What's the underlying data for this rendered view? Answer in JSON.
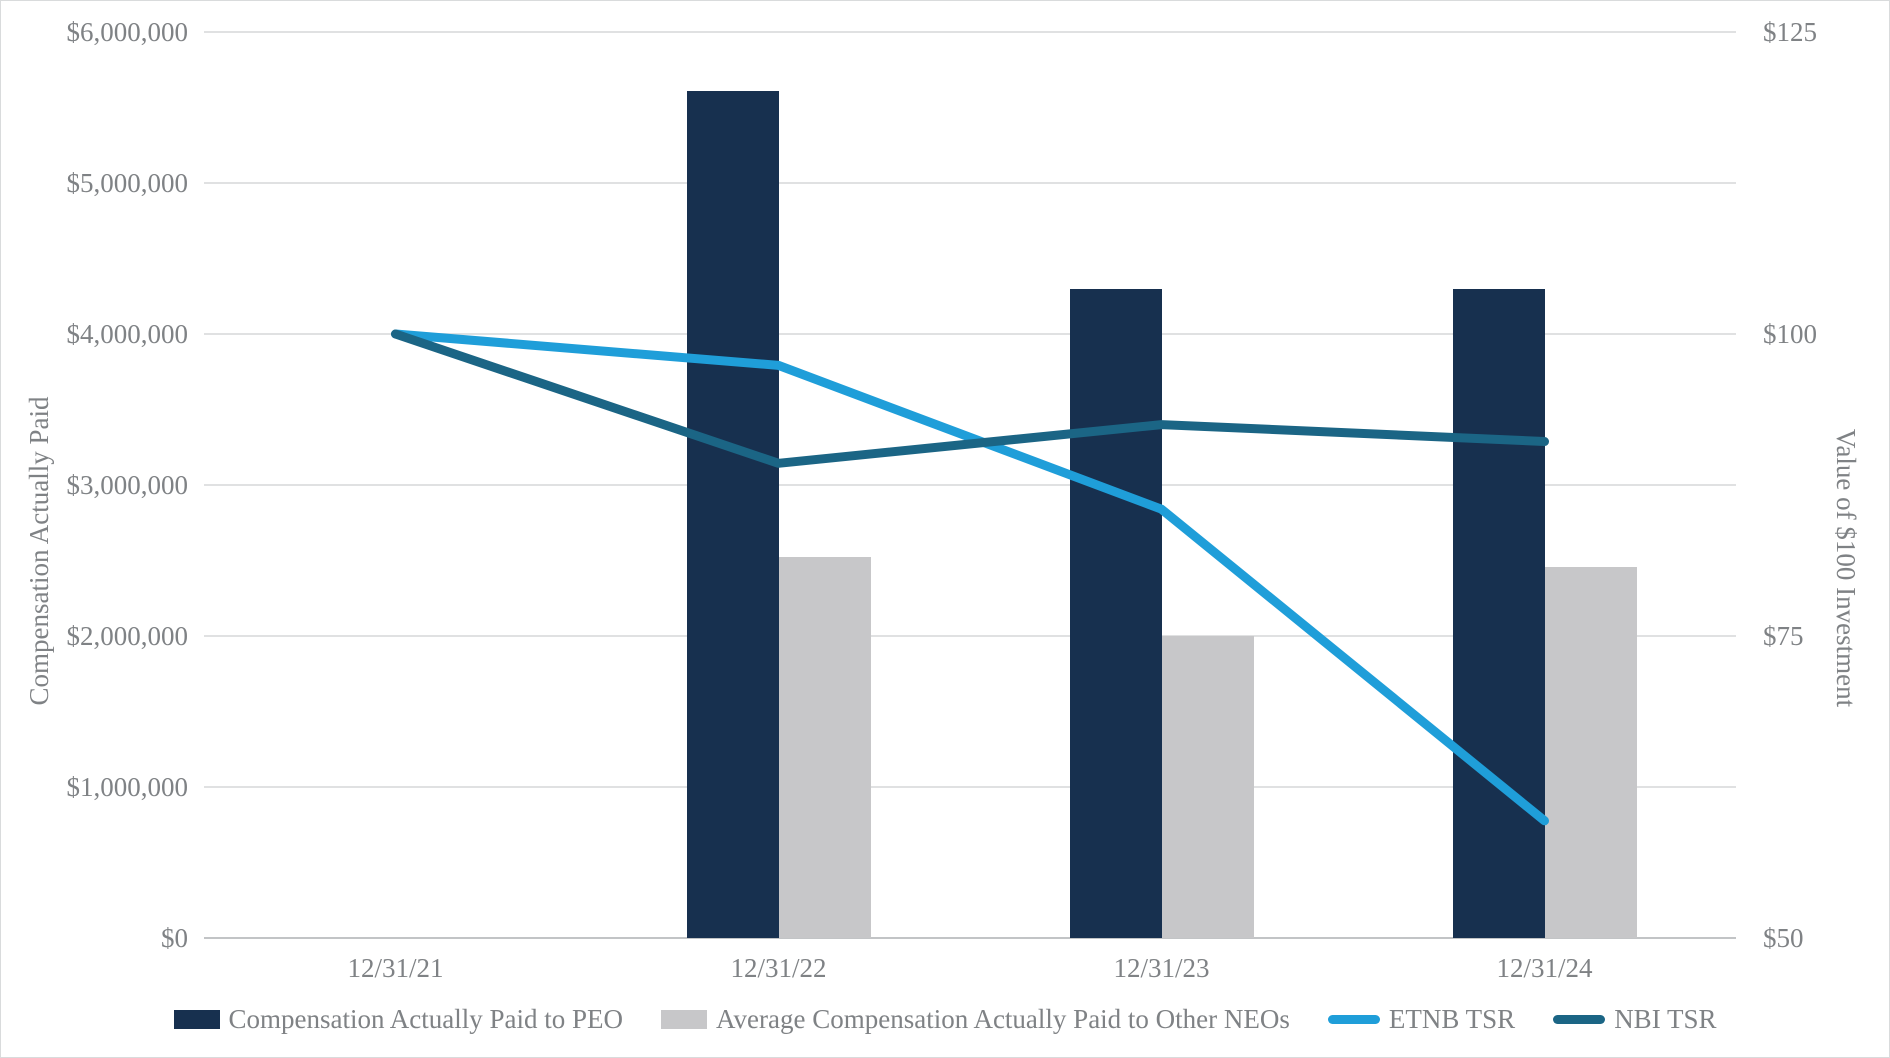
{
  "chart_data": {
    "type": "bar",
    "subtype": "combo-bar-line-dual-axis",
    "categories": [
      "12/31/21",
      "12/31/22",
      "12/31/23",
      "12/31/24"
    ],
    "bar_series": [
      {
        "name": "Compensation Actually Paid to PEO",
        "color": "#17304f",
        "axis": "left",
        "values": [
          null,
          5610000,
          4300000,
          4300000
        ]
      },
      {
        "name": "Average Compensation Actually Paid to Other NEOs",
        "color": "#c7c7c9",
        "axis": "left",
        "values": [
          null,
          2520000,
          2000000,
          2460000
        ]
      }
    ],
    "line_series": [
      {
        "name": "ETNB TSR",
        "color": "#1f9ed9",
        "axis": "right",
        "values": [
          100,
          97.4,
          85.5,
          59.7
        ]
      },
      {
        "name": "NBI TSR",
        "color": "#1b6585",
        "axis": "right",
        "values": [
          100,
          89.3,
          92.5,
          91.1
        ]
      }
    ],
    "left_axis": {
      "title": "Compensation Actually Paid",
      "min": 0,
      "max": 6000000,
      "ticks": [
        {
          "value": 6000000,
          "label": "$6,000,000"
        },
        {
          "value": 5000000,
          "label": "$5,000,000"
        },
        {
          "value": 4000000,
          "label": "$4,000,000"
        },
        {
          "value": 3000000,
          "label": "$3,000,000"
        },
        {
          "value": 2000000,
          "label": "$2,000,000"
        },
        {
          "value": 1000000,
          "label": "$1,000,000"
        },
        {
          "value": 0,
          "label": "$0"
        }
      ]
    },
    "right_axis": {
      "title": "Value of $100 Investment",
      "min": 50,
      "max": 125,
      "ticks": [
        {
          "value": 125,
          "label": "$125"
        },
        {
          "value": 100,
          "label": "$100"
        },
        {
          "value": 75,
          "label": "$75"
        },
        {
          "value": 50,
          "label": "$50"
        }
      ]
    },
    "gridlines": true,
    "legend_position": "bottom"
  },
  "style": {
    "grid_color": "#e0e1e2",
    "axis_line_color": "#c2c4c6",
    "text_color": "#7f8285",
    "background": "#ffffff"
  }
}
